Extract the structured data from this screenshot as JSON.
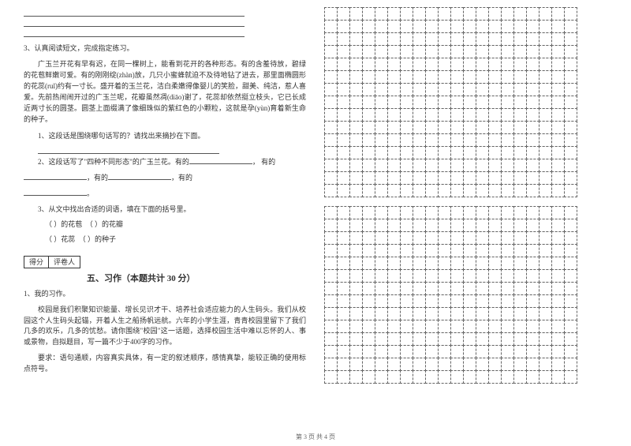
{
  "q3_intro": "3、认真阅读短文，完成指定练习。",
  "passage": "广玉兰开花有早有迟，在同一棵树上，能看到花开的各种形态。有的含羞待放，碧绿的花苞鲜嫩可爱。有的刚刚绽(zhàn)放，几只小蜜蜂就迫不及待地钻了进去，那里面椭圆形的花蕊(ruǐ)约有一寸长。盛开着的玉兰花，洁白柔嫩得像婴儿的笑脸，甜美、纯洁，惹人喜爱。先前热闹闹开过的广玉兰呢，花瓣虽然凋(diāo)谢了，花蕊却依然挺立枝头，它已长成近两寸长的圆茎。圆茎上面缀满了像细珠似的紫红色的小颗粒，这就是孕(yùn)育着新生命的种子。",
  "sub_q1": "1、这段话是围绕哪句话写的？请找出来摘抄在下面。",
  "sub_q2_a": "2、这段话写了\"四种不同形态\"的广玉兰花。有的",
  "sub_q2_b": "，        有的",
  "sub_q2_c": "，有的",
  "sub_q2_d": "，有的",
  "sub_q2_e": "。",
  "sub_q3": "3、从文中找出合适的词语，填在下面的括号里。",
  "fill_1a": "（    ）的花苞",
  "fill_1b": "（    ）的花瓣",
  "fill_2a": "（    ）花蕊",
  "fill_2b": "（    ）的种子",
  "score_labels": {
    "left": "得分",
    "right": "评卷人"
  },
  "section5_title": "五、习作（本题共计 30 分）",
  "q1_title": "1、我的习作。",
  "essay_p1": "校园是我们积聚知识能量、增长见识才干、培养社会适应能力的人生码头。我们从校园这个人生码头起锚，开着人生之船扬帆远航。六年的小学生涯，青青校园里留下了我们几多的欢乐，几多的忧愁。请你围绕\"校园\"这一话题，选择校园生活中难以忘怀的人、事或景物，自拟题目，写一篇不少于400字的习作。",
  "essay_p2": "要求：语句通顺，内容真实具体，有一定的叙述顺序，感情真挚，能较正确的使用标点符号。",
  "footer": "第 3 页 共 4 页",
  "grid": {
    "block1_rows": 15,
    "block2_rows": 14,
    "cols": 20,
    "cell_size": 17
  }
}
